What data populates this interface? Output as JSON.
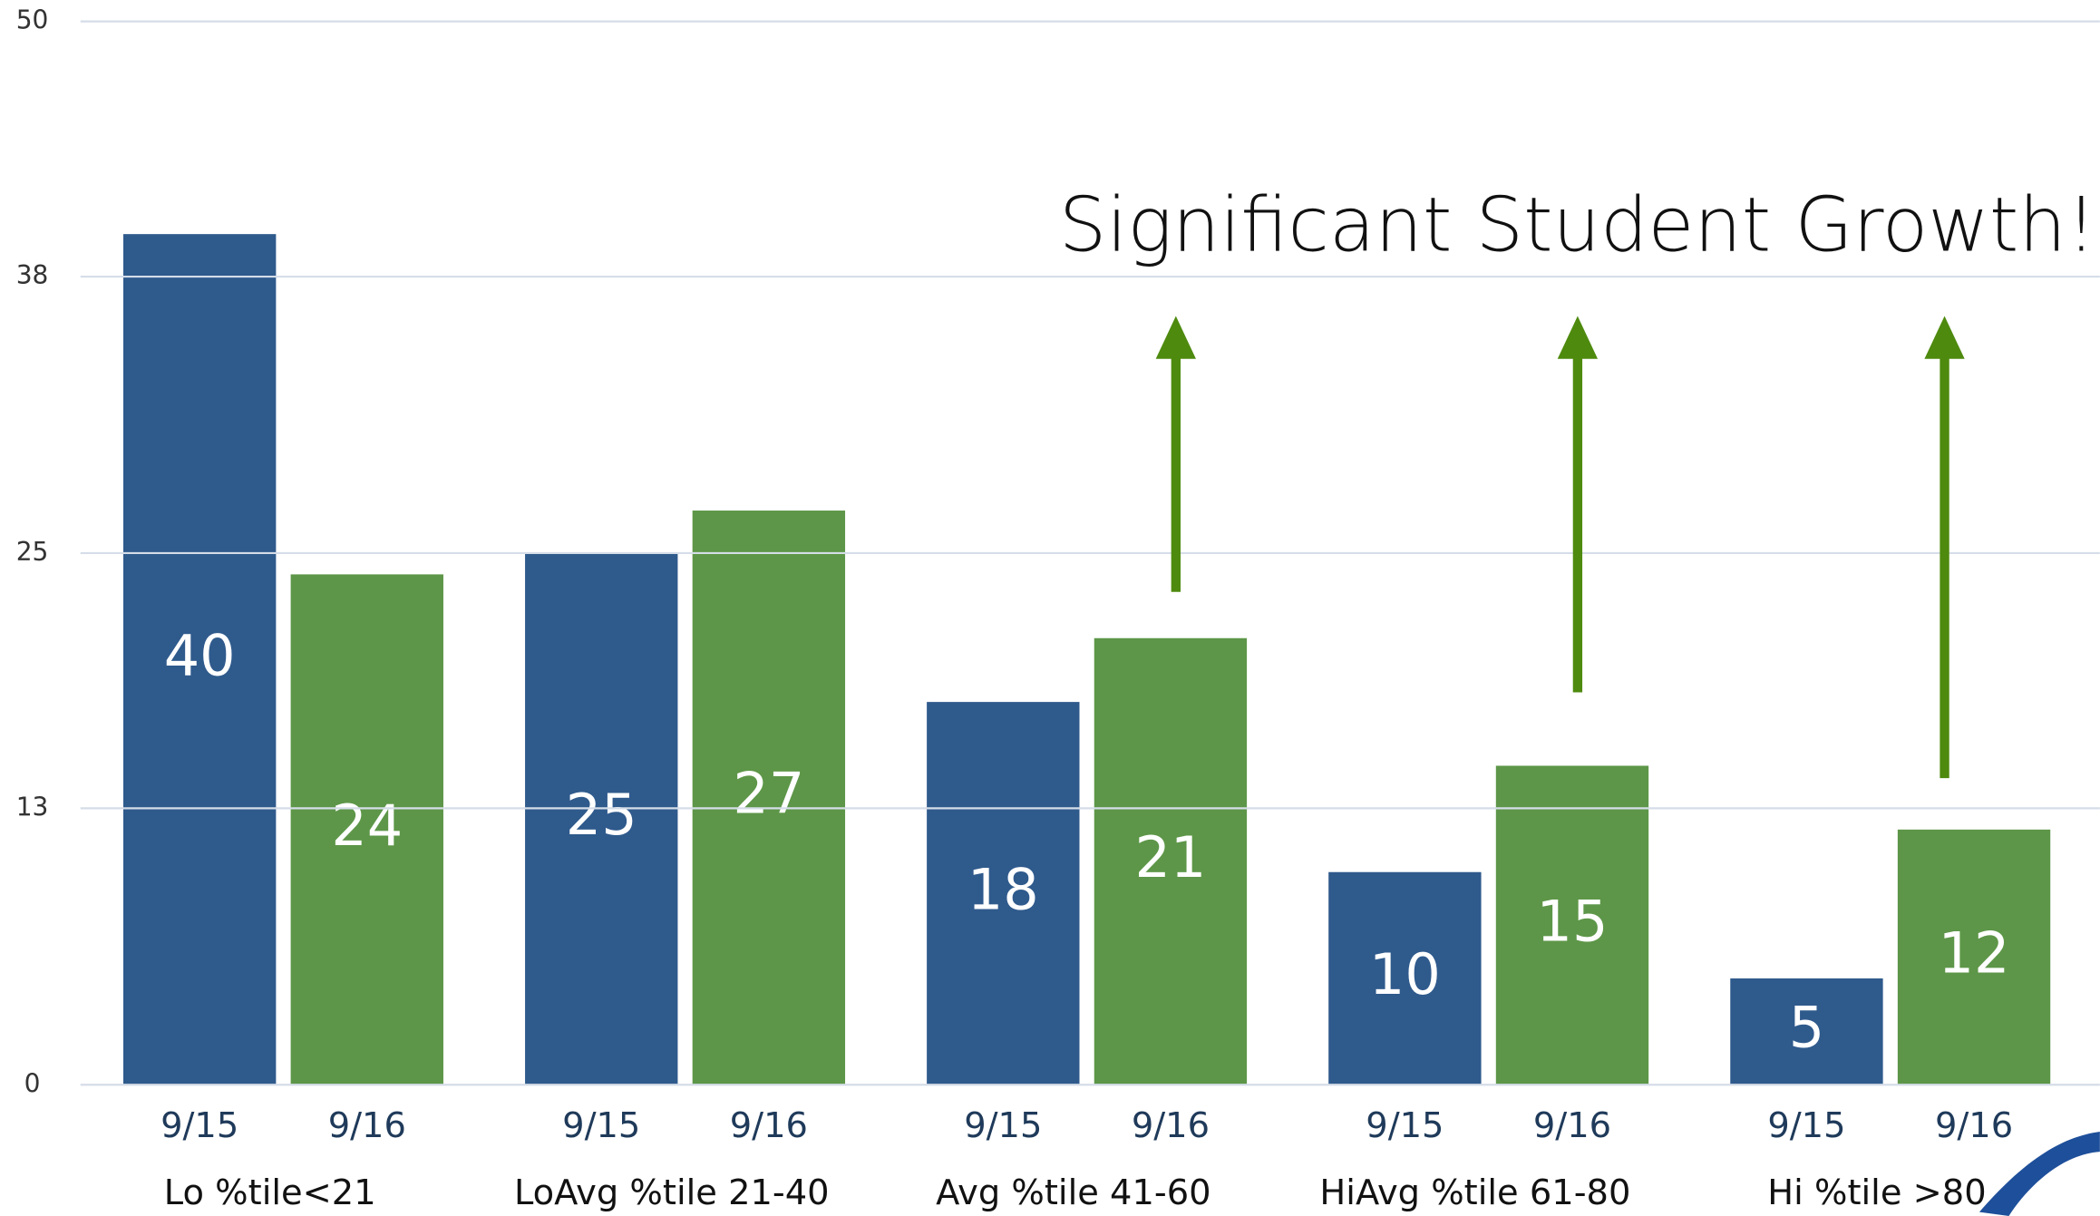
{
  "chart_data": {
    "type": "bar",
    "annotation": "Significant Student Growth!",
    "categories": [
      "Lo  %tile<21",
      "LoAvg  %tile 21-40",
      "Avg %tile 41-60",
      "HiAvg %tile 61-80",
      "Hi %tile >80"
    ],
    "series": [
      {
        "name": "9/15",
        "color": "#2f5a8c",
        "values": [
          40,
          25,
          18,
          10,
          5
        ]
      },
      {
        "name": "9/16",
        "color": "#5d9648",
        "values": [
          24,
          27,
          21,
          15,
          12
        ]
      }
    ],
    "ylim": [
      0,
      50
    ],
    "yticks": [
      0,
      13,
      25,
      38,
      50
    ],
    "grid": true
  }
}
